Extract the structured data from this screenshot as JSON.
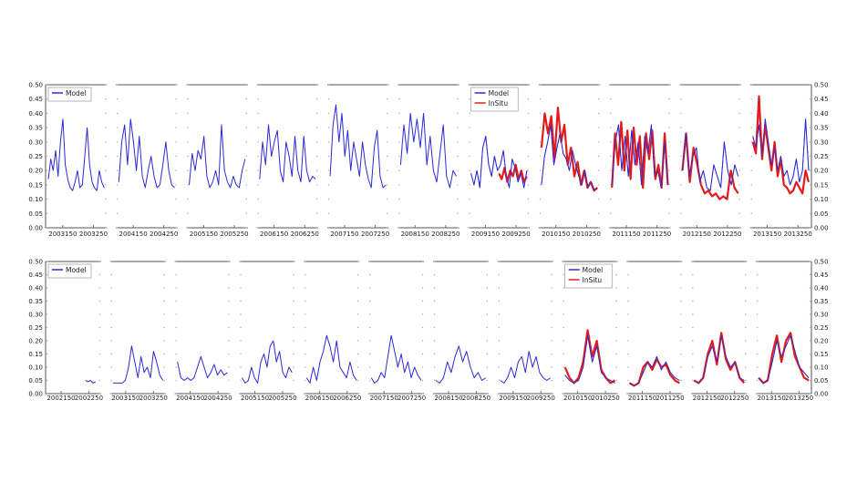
{
  "colors": {
    "model": "#2a2ad6",
    "insitu": "#e21b1b",
    "axis": "#555555",
    "dots": "#aaaaaa"
  },
  "chart_data": [
    {
      "type": "line",
      "ylim": [
        0,
        0.5
      ],
      "yticks": [
        "0.00",
        "0.05",
        "0.10",
        "0.15",
        "0.20",
        "0.25",
        "0.30",
        "0.35",
        "0.40",
        "0.45",
        "0.50"
      ],
      "panels": [
        {
          "xticks": [
            "2003150",
            "2003250"
          ],
          "legend": [
            "Model"
          ],
          "insitu": false,
          "model_values": [
            0.17,
            0.24,
            0.2,
            0.27,
            0.18,
            0.3,
            0.38,
            0.22,
            0.17,
            0.14,
            0.13,
            0.16,
            0.2,
            0.14,
            0.15,
            0.25,
            0.35,
            0.22,
            0.16,
            0.14,
            0.13,
            0.2,
            0.16,
            0.14
          ]
        },
        {
          "xticks": [
            "2004150",
            "2004250"
          ],
          "legend": [],
          "insitu": false,
          "model_values": [
            0.16,
            0.3,
            0.36,
            0.22,
            0.38,
            0.3,
            0.2,
            0.32,
            0.18,
            0.14,
            0.2,
            0.25,
            0.18,
            0.14,
            0.15,
            0.22,
            0.3,
            0.2,
            0.15,
            0.14
          ]
        },
        {
          "xticks": [
            "2005150",
            "2005250"
          ],
          "legend": [],
          "insitu": false,
          "model_values": [
            0.15,
            0.26,
            0.2,
            0.27,
            0.24,
            0.32,
            0.18,
            0.14,
            0.16,
            0.2,
            0.15,
            0.36,
            0.2,
            0.16,
            0.14,
            0.18,
            0.15,
            0.14,
            0.2,
            0.24
          ]
        },
        {
          "xticks": [
            "2006150",
            "2006250"
          ],
          "legend": [],
          "insitu": false,
          "model_values": [
            0.17,
            0.3,
            0.22,
            0.36,
            0.25,
            0.3,
            0.34,
            0.2,
            0.16,
            0.3,
            0.25,
            0.18,
            0.32,
            0.2,
            0.16,
            0.32,
            0.2,
            0.16,
            0.18,
            0.17
          ]
        },
        {
          "xticks": [
            "2007150",
            "2007250"
          ],
          "legend": [],
          "insitu": false,
          "model_values": [
            0.18,
            0.36,
            0.43,
            0.3,
            0.4,
            0.25,
            0.34,
            0.2,
            0.3,
            0.24,
            0.18,
            0.3,
            0.22,
            0.17,
            0.14,
            0.28,
            0.34,
            0.18,
            0.14,
            0.15
          ]
        },
        {
          "xticks": [
            "2008150",
            "2008250"
          ],
          "legend": [],
          "insitu": false,
          "model_values": [
            0.22,
            0.36,
            0.26,
            0.4,
            0.3,
            0.38,
            0.28,
            0.4,
            0.22,
            0.32,
            0.2,
            0.16,
            0.26,
            0.36,
            0.18,
            0.14,
            0.2,
            0.18
          ]
        },
        {
          "xticks": [
            "2009150",
            "2009250"
          ],
          "legend": [
            "Model",
            "InSitu"
          ],
          "insitu": true,
          "model_values": [
            0.19,
            0.15,
            0.2,
            0.14,
            0.28,
            0.32,
            0.22,
            0.18,
            0.25,
            0.2,
            0.22,
            0.27,
            0.18,
            0.14,
            0.24,
            0.21,
            0.16,
            0.19,
            0.14,
            0.2
          ],
          "insitu_values": [
            0.19,
            0.17,
            0.21,
            0.16,
            0.2,
            0.18,
            0.22,
            0.17,
            0.2,
            0.16,
            0.18
          ]
        },
        {
          "xticks": [
            "2010150",
            "2010250"
          ],
          "legend": [],
          "insitu": true,
          "model_values": [
            0.15,
            0.25,
            0.3,
            0.36,
            0.22,
            0.28,
            0.33,
            0.26,
            0.24,
            0.2,
            0.27,
            0.22,
            0.18,
            0.15,
            0.2,
            0.14,
            0.16,
            0.13,
            0.14
          ],
          "insitu_values": [
            0.28,
            0.4,
            0.33,
            0.39,
            0.24,
            0.42,
            0.3,
            0.36,
            0.22,
            0.28,
            0.18,
            0.23,
            0.15,
            0.2,
            0.14,
            0.16,
            0.13,
            0.14
          ]
        },
        {
          "xticks": [
            "2011150",
            "2011250"
          ],
          "legend": [],
          "insitu": true,
          "model_values": [
            0.15,
            0.3,
            0.36,
            0.2,
            0.32,
            0.18,
            0.34,
            0.22,
            0.3,
            0.15,
            0.32,
            0.26,
            0.36,
            0.18,
            0.2,
            0.14,
            0.3,
            0.15
          ],
          "insitu_values": [
            0.14,
            0.33,
            0.22,
            0.37,
            0.2,
            0.34,
            0.17,
            0.35,
            0.22,
            0.32,
            0.14,
            0.33,
            0.24,
            0.34,
            0.17,
            0.22,
            0.14,
            0.33,
            0.15
          ]
        },
        {
          "xticks": [
            "2012150",
            "2012250"
          ],
          "legend": [],
          "insitu": true,
          "model_values": [
            0.2,
            0.33,
            0.18,
            0.25,
            0.28,
            0.16,
            0.2,
            0.14,
            0.13,
            0.22,
            0.18,
            0.14,
            0.3,
            0.2,
            0.15,
            0.22,
            0.18
          ],
          "insitu_values": [
            0.2,
            0.33,
            0.16,
            0.28,
            0.22,
            0.15,
            0.12,
            0.13,
            0.11,
            0.12,
            0.1,
            0.11,
            0.1,
            0.2,
            0.14,
            0.12
          ]
        },
        {
          "xticks": [
            "2013150",
            "2013250"
          ],
          "legend": [],
          "insitu": true,
          "model_values": [
            0.32,
            0.28,
            0.36,
            0.25,
            0.38,
            0.3,
            0.22,
            0.28,
            0.2,
            0.25,
            0.18,
            0.2,
            0.15,
            0.18,
            0.24,
            0.16,
            0.2,
            0.38,
            0.2
          ],
          "insitu_values": [
            0.3,
            0.26,
            0.46,
            0.24,
            0.36,
            0.28,
            0.2,
            0.3,
            0.18,
            0.24,
            0.15,
            0.14,
            0.12,
            0.13,
            0.16,
            0.14,
            0.12,
            0.2,
            0.16
          ]
        }
      ]
    },
    {
      "type": "line",
      "ylim": [
        0,
        0.5
      ],
      "yticks": [
        "0.00",
        "0.05",
        "0.10",
        "0.15",
        "0.20",
        "0.25",
        "0.30",
        "0.35",
        "0.40",
        "0.45",
        "0.50"
      ],
      "panels": [
        {
          "xticks": [
            "2002150",
            "2002250"
          ],
          "legend": [
            "Model"
          ],
          "insitu": false,
          "model_values": [
            0.05,
            0.045,
            0.05,
            0.04,
            0.045
          ]
        },
        {
          "xticks": [
            "2003150",
            "2003250"
          ],
          "legend": [],
          "insitu": false,
          "model_values": [
            0.04,
            0.04,
            0.04,
            0.04,
            0.05,
            0.1,
            0.18,
            0.12,
            0.06,
            0.14,
            0.08,
            0.1,
            0.06,
            0.16,
            0.12,
            0.07,
            0.05
          ]
        },
        {
          "xticks": [
            "2004150",
            "2004250"
          ],
          "legend": [],
          "insitu": false,
          "model_values": [
            0.12,
            0.06,
            0.05,
            0.06,
            0.05,
            0.06,
            0.1,
            0.14,
            0.1,
            0.06,
            0.08,
            0.11,
            0.07,
            0.09,
            0.07,
            0.08
          ]
        },
        {
          "xticks": [
            "2005150",
            "2005250"
          ],
          "legend": [],
          "insitu": false,
          "model_values": [
            0.06,
            0.04,
            0.05,
            0.1,
            0.06,
            0.04,
            0.12,
            0.15,
            0.1,
            0.18,
            0.2,
            0.12,
            0.16,
            0.08,
            0.06,
            0.1,
            0.08
          ]
        },
        {
          "xticks": [
            "2006150",
            "2006250"
          ],
          "legend": [],
          "insitu": false,
          "model_values": [
            0.06,
            0.04,
            0.1,
            0.05,
            0.12,
            0.16,
            0.22,
            0.18,
            0.12,
            0.2,
            0.1,
            0.08,
            0.06,
            0.12,
            0.07,
            0.05
          ]
        },
        {
          "xticks": [
            "2007150",
            "2007250"
          ],
          "legend": [],
          "insitu": false,
          "model_values": [
            0.06,
            0.04,
            0.05,
            0.08,
            0.06,
            0.14,
            0.22,
            0.16,
            0.1,
            0.15,
            0.08,
            0.12,
            0.06,
            0.1,
            0.07,
            0.05
          ]
        },
        {
          "xticks": [
            "2008150",
            "2008250"
          ],
          "legend": [],
          "insitu": false,
          "model_values": [
            0.05,
            0.04,
            0.06,
            0.12,
            0.08,
            0.14,
            0.18,
            0.12,
            0.16,
            0.1,
            0.06,
            0.08,
            0.05,
            0.06
          ]
        },
        {
          "xticks": [
            "2009150",
            "2009250"
          ],
          "legend": [],
          "insitu": false,
          "model_values": [
            0.05,
            0.04,
            0.06,
            0.1,
            0.06,
            0.12,
            0.14,
            0.08,
            0.16,
            0.1,
            0.14,
            0.08,
            0.06,
            0.05,
            0.06
          ]
        },
        {
          "xticks": [
            "2010150",
            "2010250"
          ],
          "legend": [
            "Model",
            "InSitu"
          ],
          "insitu": true,
          "model_values": [
            0.07,
            0.05,
            0.04,
            0.05,
            0.1,
            0.22,
            0.12,
            0.18,
            0.08,
            0.06,
            0.05,
            0.04
          ],
          "insitu_values": [
            0.1,
            0.06,
            0.04,
            0.06,
            0.12,
            0.24,
            0.14,
            0.2,
            0.09,
            0.06,
            0.04,
            0.05
          ]
        },
        {
          "xticks": [
            "2011150",
            "2011250"
          ],
          "legend": [],
          "insitu": true,
          "model_values": [
            0.04,
            0.03,
            0.04,
            0.08,
            0.12,
            0.1,
            0.14,
            0.09,
            0.12,
            0.08,
            0.06,
            0.05
          ],
          "insitu_values": [
            0.04,
            0.03,
            0.04,
            0.1,
            0.12,
            0.09,
            0.13,
            0.1,
            0.11,
            0.07,
            0.05,
            0.04
          ]
        },
        {
          "xticks": [
            "2012150",
            "2012250"
          ],
          "legend": [],
          "insitu": true,
          "model_values": [
            0.05,
            0.04,
            0.06,
            0.14,
            0.18,
            0.12,
            0.22,
            0.14,
            0.1,
            0.12,
            0.06,
            0.05
          ],
          "insitu_values": [
            0.05,
            0.04,
            0.06,
            0.15,
            0.2,
            0.11,
            0.23,
            0.13,
            0.09,
            0.12,
            0.06,
            0.04
          ]
        },
        {
          "xticks": [
            "2013150",
            "2013250"
          ],
          "legend": [],
          "insitu": true,
          "model_values": [
            0.06,
            0.04,
            0.05,
            0.12,
            0.2,
            0.14,
            0.18,
            0.22,
            0.16,
            0.1,
            0.08,
            0.06
          ],
          "insitu_values": [
            0.06,
            0.04,
            0.05,
            0.15,
            0.22,
            0.12,
            0.2,
            0.23,
            0.14,
            0.1,
            0.06,
            0.05
          ]
        }
      ]
    }
  ]
}
